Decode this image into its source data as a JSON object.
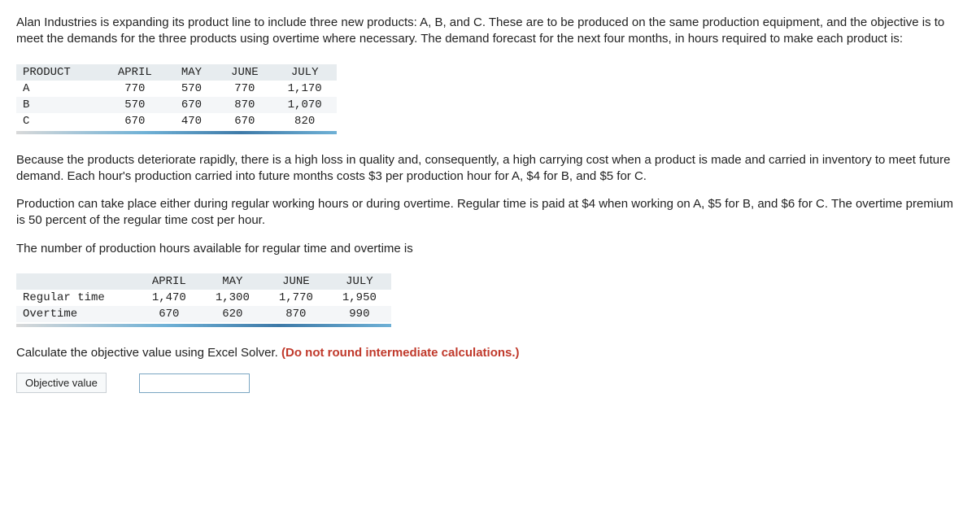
{
  "para1": "Alan Industries is expanding its product line to include three new products: A, B, and C. These are to be produced on the same production equipment, and the objective is to meet the demands for the three products using overtime where necessary. The demand forecast for the next four months, in hours required to make each product is:",
  "table1": {
    "columns": [
      "PRODUCT",
      "APRIL",
      "MAY",
      "JUNE",
      "JULY"
    ],
    "rows": [
      [
        "A",
        "770",
        "570",
        "770",
        "1,170"
      ],
      [
        "B",
        "570",
        "670",
        "870",
        "1,070"
      ],
      [
        "C",
        "670",
        "470",
        "670",
        "820"
      ]
    ]
  },
  "para2": "Because the products deteriorate rapidly, there is a high loss in quality and, consequently, a high carrying cost when a product is made and carried in inventory to meet future demand. Each hour's production carried into future months costs $3 per production hour for A, $4 for B, and $5 for C.",
  "para3": "Production can take place either during regular working hours or during overtime. Regular time is paid at $4 when working on A, $5 for B, and $6 for C. The overtime premium is 50 percent of the regular time cost per hour.",
  "para4": "The number of production hours available for regular time and overtime is",
  "table2": {
    "columns": [
      "",
      "APRIL",
      "MAY",
      "JUNE",
      "JULY"
    ],
    "rows": [
      [
        "Regular time",
        "1,470",
        "1,300",
        "1,770",
        "1,950"
      ],
      [
        "Overtime",
        "670",
        "620",
        "870",
        "990"
      ]
    ]
  },
  "para5a": "Calculate the objective value using Excel Solver. ",
  "para5b": "(Do not round intermediate calculations.)",
  "answer_label": "Objective value",
  "answer_value": ""
}
